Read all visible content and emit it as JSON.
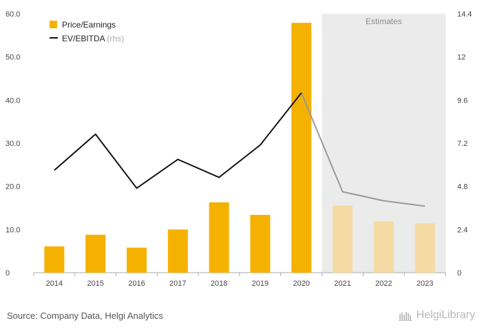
{
  "chart_data": {
    "type": "bar",
    "categories": [
      "2014",
      "2015",
      "2016",
      "2017",
      "2018",
      "2019",
      "2020",
      "2021",
      "2022",
      "2023"
    ],
    "series": [
      {
        "name": "Price/Earnings",
        "type": "bar",
        "axis": "left",
        "color": "#f5b100",
        "estimate_color": "#f5dba3",
        "values": [
          6.1,
          8.8,
          5.8,
          10.0,
          16.3,
          13.4,
          57.9,
          15.5,
          11.9,
          11.4
        ]
      },
      {
        "name": "EV/EBITDA",
        "name_suffix": "(rhs)",
        "type": "line",
        "axis": "right",
        "color": "#111111",
        "estimate_color": "#999999",
        "values": [
          5.7,
          7.7,
          4.7,
          6.3,
          5.3,
          7.1,
          10.0,
          4.5,
          4.0,
          3.7
        ]
      }
    ],
    "y_left": {
      "ticks": [
        "0",
        "10.0",
        "20.0",
        "30.0",
        "40.0",
        "50.0",
        "60.0"
      ],
      "range": [
        0,
        60
      ]
    },
    "y_right": {
      "ticks": [
        "0",
        "2.4",
        "4.8",
        "7.2",
        "9.6",
        "12",
        "14.4"
      ],
      "range": [
        0,
        14.4
      ]
    },
    "estimates_label": "Estimates",
    "estimate_start_index": 7,
    "shade_color": "#ebebeb",
    "legend_position": "top-left",
    "grid": false
  },
  "footer": {
    "source": "Source: Company Data, Helgi Analytics",
    "brand": "HelgiLibrary"
  }
}
